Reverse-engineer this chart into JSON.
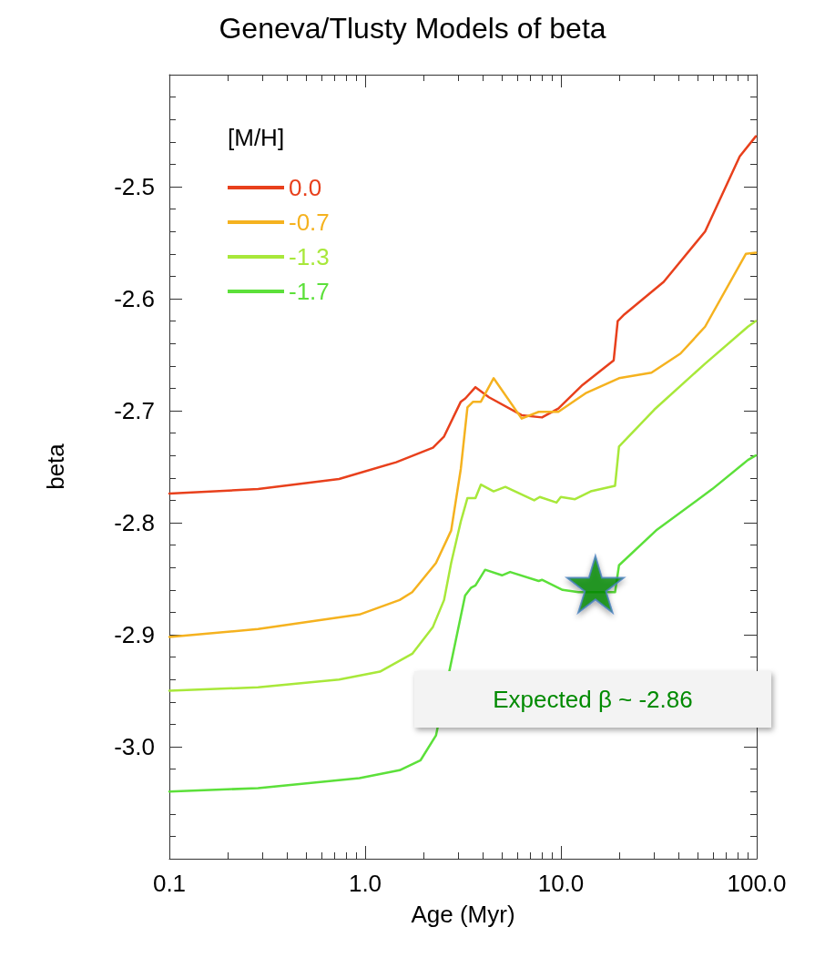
{
  "chart_data": {
    "type": "line",
    "title": "Geneva/Tlusty Models of beta",
    "xlabel": "Age (Myr)",
    "ylabel": "beta",
    "legend_title": "[M/H]",
    "legend": "top left",
    "grid": false,
    "log": "x",
    "line_style": "solid",
    "marker": "none",
    "xlim": [
      0.1,
      100
    ],
    "xticks": [
      {
        "value": 0.1,
        "label": "0.1"
      },
      {
        "value": 1,
        "label": "1.0"
      },
      {
        "value": 10,
        "label": "10.0"
      },
      {
        "value": 100,
        "label": "100.0"
      }
    ],
    "ylim": [
      -3.1,
      -2.4
    ],
    "yticks": [
      -2.5,
      -2.6,
      -2.7,
      -2.8,
      -2.9,
      {
        "value": -3,
        "label": "-3.0"
      }
    ],
    "annotations": [
      "Expected β ~ -2.86"
    ],
    "series": [
      {
        "name": "0.0",
        "color": "#e8401c",
        "x": [
          0.1,
          0.284,
          0.736,
          1.44,
          2.22,
          2.53,
          3.08,
          3.25,
          3.66,
          4.29,
          6.3,
          8.0,
          9.7,
          12.9,
          18.6,
          19.5,
          21.1,
          33.5,
          54.5,
          81.9,
          99
        ],
        "values": [
          -2.774,
          -2.77,
          -2.761,
          -2.746,
          -2.733,
          -2.723,
          -2.692,
          -2.689,
          -2.679,
          -2.688,
          -2.704,
          -2.706,
          -2.698,
          -2.677,
          -2.655,
          -2.62,
          -2.614,
          -2.585,
          -2.54,
          -2.473,
          -2.455
        ]
      },
      {
        "name": "-0.7",
        "color": "#f5b21f",
        "x": [
          0.1,
          0.284,
          0.935,
          1.5,
          1.74,
          2.3,
          2.75,
          3.08,
          3.33,
          3.56,
          3.9,
          4.53,
          6.3,
          7.7,
          9.7,
          13.5,
          19.8,
          29,
          40.8,
          54.5,
          88,
          99
        ],
        "values": [
          -2.902,
          -2.895,
          -2.882,
          -2.869,
          -2.862,
          -2.836,
          -2.807,
          -2.752,
          -2.697,
          -2.692,
          -2.692,
          -2.671,
          -2.707,
          -2.701,
          -2.701,
          -2.684,
          -2.671,
          -2.666,
          -2.649,
          -2.625,
          -2.56,
          -2.559
        ]
      },
      {
        "name": "-1.3",
        "color": "#a8e83a",
        "x": [
          0.1,
          0.284,
          0.736,
          1.19,
          1.74,
          2.22,
          2.53,
          2.75,
          3.08,
          3.33,
          3.66,
          3.9,
          4.53,
          5.2,
          7.3,
          7.8,
          9.5,
          9.99,
          11.8,
          14.2,
          18.9,
          19.8,
          30,
          54.5,
          90.2,
          99
        ],
        "values": [
          -2.95,
          -2.947,
          -2.94,
          -2.933,
          -2.917,
          -2.893,
          -2.869,
          -2.836,
          -2.799,
          -2.778,
          -2.778,
          -2.766,
          -2.772,
          -2.768,
          -2.78,
          -2.777,
          -2.782,
          -2.777,
          -2.779,
          -2.772,
          -2.767,
          -2.732,
          -2.699,
          -2.658,
          -2.625,
          -2.62
        ]
      },
      {
        "name": "-1.7",
        "color": "#5ce03a",
        "x": [
          0.1,
          0.284,
          0.935,
          1.5,
          1.92,
          2.3,
          2.96,
          3.24,
          3.48,
          3.66,
          4.1,
          5.0,
          5.5,
          7.7,
          8.0,
          10.2,
          12.3,
          18.9,
          19.8,
          30.6,
          59.3,
          90.2,
          99
        ],
        "values": [
          -3.04,
          -3.037,
          -3.028,
          -3.021,
          -3.012,
          -2.99,
          -2.898,
          -2.865,
          -2.858,
          -2.856,
          -2.842,
          -2.847,
          -2.844,
          -2.852,
          -2.851,
          -2.86,
          -2.862,
          -2.862,
          -2.838,
          -2.807,
          -2.77,
          -2.744,
          -2.74
        ]
      },
      {
        "type": "scatter",
        "marker": "star",
        "color": "#008a00",
        "x": [
          15
        ],
        "values": [
          -2.855
        ]
      }
    ]
  }
}
